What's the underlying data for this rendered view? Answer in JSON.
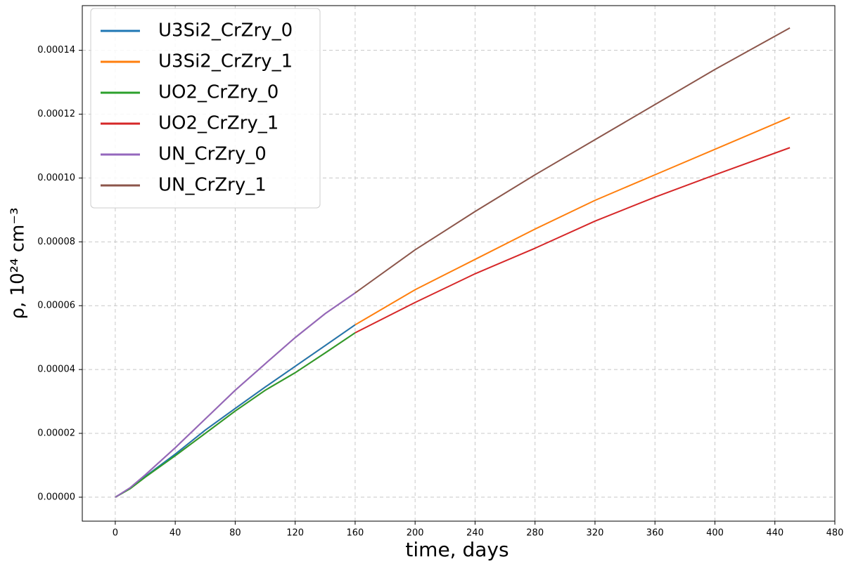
{
  "chart_data": {
    "type": "line",
    "x_label": "time, days",
    "y_label": "ρ, 10²⁴ cm⁻³",
    "x": [
      0,
      10,
      20,
      40,
      60,
      80,
      100,
      120,
      140,
      160,
      200,
      240,
      280,
      320,
      360,
      400,
      450
    ],
    "series": [
      {
        "name": "U3Si2_CrZry_0",
        "color": "#1f77b4",
        "values": [
          0,
          2.8e-06,
          6.5e-06,
          1.35e-05,
          2.1e-05,
          2.78e-05,
          3.45e-05,
          4.1e-05,
          4.75e-05,
          5.4e-05,
          null,
          null,
          null,
          null,
          null,
          null,
          null
        ]
      },
      {
        "name": "U3Si2_CrZry_1",
        "color": "#ff7f0e",
        "values": [
          0,
          2.8e-06,
          6.5e-06,
          1.35e-05,
          2.1e-05,
          2.78e-05,
          3.45e-05,
          4.1e-05,
          4.75e-05,
          5.4e-05,
          6.5e-05,
          7.45e-05,
          8.4e-05,
          9.3e-05,
          0.000101,
          0.000109,
          0.000119
        ]
      },
      {
        "name": "UO2_CrZry_0",
        "color": "#2ca02c",
        "values": [
          0,
          2.7e-06,
          6.3e-06,
          1.3e-05,
          2e-05,
          2.7e-05,
          3.35e-05,
          3.9e-05,
          4.52e-05,
          5.15e-05,
          null,
          null,
          null,
          null,
          null,
          null,
          null
        ]
      },
      {
        "name": "UO2_CrZry_1",
        "color": "#d62728",
        "values": [
          0,
          2.7e-06,
          6.3e-06,
          1.3e-05,
          2e-05,
          2.7e-05,
          3.35e-05,
          3.9e-05,
          4.52e-05,
          5.15e-05,
          6.1e-05,
          7e-05,
          7.8e-05,
          8.65e-05,
          9.4e-05,
          0.000101,
          0.0001095
        ]
      },
      {
        "name": "UN_CrZry_0",
        "color": "#9467bd",
        "values": [
          0,
          3e-06,
          7e-06,
          1.55e-05,
          2.45e-05,
          3.35e-05,
          4.18e-05,
          5e-05,
          5.75e-05,
          6.4e-05,
          null,
          null,
          null,
          null,
          null,
          null,
          null
        ]
      },
      {
        "name": "UN_CrZry_1",
        "color": "#8c564b",
        "values": [
          0,
          3e-06,
          7e-06,
          1.55e-05,
          2.45e-05,
          3.35e-05,
          4.18e-05,
          5e-05,
          5.75e-05,
          6.4e-05,
          7.75e-05,
          8.95e-05,
          0.000101,
          0.000112,
          0.000123,
          0.000134,
          0.000147
        ]
      }
    ],
    "xlim": [
      -22,
      480
    ],
    "ylim": [
      -7.5e-06,
      0.000154
    ],
    "xticks": [
      0,
      40,
      80,
      120,
      160,
      200,
      240,
      280,
      320,
      360,
      400,
      440,
      480
    ],
    "yticks": [
      {
        "value": 0,
        "label": "0.00000"
      },
      {
        "value": 2e-05,
        "label": "0.00002"
      },
      {
        "value": 4e-05,
        "label": "0.00004"
      },
      {
        "value": 6e-05,
        "label": "0.00006"
      },
      {
        "value": 8e-05,
        "label": "0.00008"
      },
      {
        "value": 0.0001,
        "label": "0.00010"
      },
      {
        "value": 0.00012,
        "label": "0.00012"
      },
      {
        "value": 0.00014,
        "label": "0.00014"
      }
    ],
    "grid": true,
    "legend": "upper left"
  }
}
